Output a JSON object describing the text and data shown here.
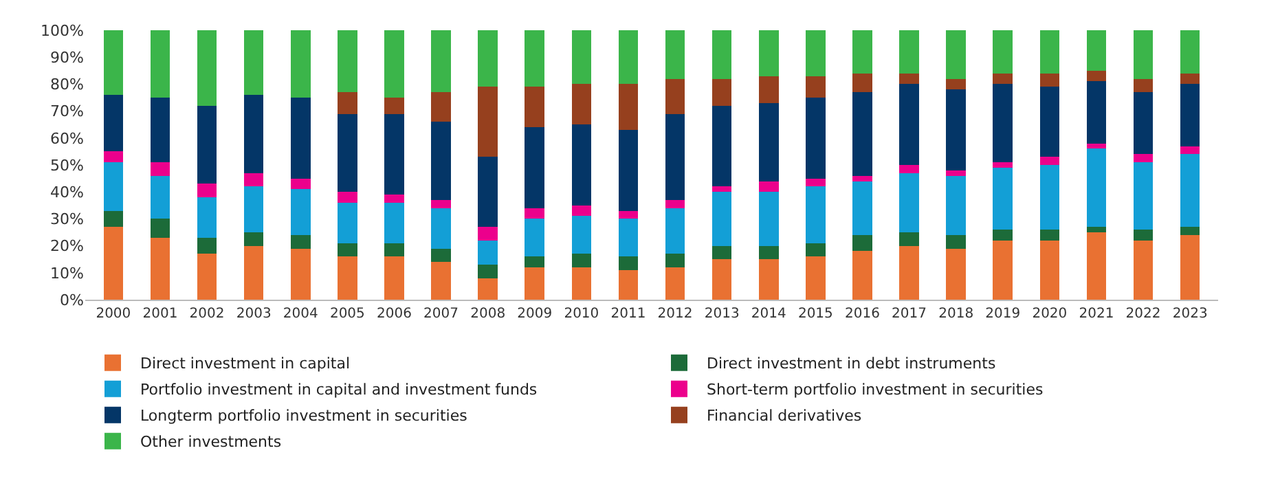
{
  "chart_data": {
    "type": "bar",
    "stacked": true,
    "categories": [
      "2000",
      "2001",
      "2002",
      "2003",
      "2004",
      "2005",
      "2006",
      "2007",
      "2008",
      "2009",
      "2010",
      "2011",
      "2012",
      "2013",
      "2014",
      "2015",
      "2016",
      "2017",
      "2018",
      "2019",
      "2020",
      "2021",
      "2022",
      "2023"
    ],
    "series": [
      {
        "name": "Direct investment in capital",
        "color": "#e97132",
        "values": [
          27,
          23,
          17,
          20,
          19,
          16,
          16,
          14,
          8,
          12,
          12,
          11,
          12,
          15,
          15,
          16,
          18,
          20,
          19,
          22,
          22,
          25,
          22,
          24
        ]
      },
      {
        "name": "Direct investment in debt instruments",
        "color": "#1c6b39",
        "values": [
          6,
          7,
          6,
          5,
          5,
          5,
          5,
          5,
          5,
          4,
          5,
          5,
          5,
          5,
          5,
          5,
          6,
          5,
          5,
          4,
          4,
          2,
          4,
          3
        ]
      },
      {
        "name": "Portfolio investment in capital and investment funds",
        "color": "#139fd6",
        "values": [
          18,
          16,
          15,
          17,
          17,
          15,
          15,
          15,
          9,
          14,
          14,
          14,
          17,
          20,
          20,
          21,
          20,
          22,
          22,
          23,
          24,
          29,
          25,
          27
        ]
      },
      {
        "name": "Short-term portfolio investment in securities",
        "color": "#ec008c",
        "values": [
          4,
          5,
          5,
          5,
          4,
          4,
          3,
          3,
          5,
          4,
          4,
          3,
          3,
          2,
          4,
          3,
          2,
          3,
          2,
          2,
          3,
          2,
          3,
          3
        ]
      },
      {
        "name": "Longterm portfolio investment in securities",
        "color": "#043667",
        "values": [
          21,
          24,
          29,
          29,
          30,
          29,
          30,
          29,
          26,
          30,
          30,
          30,
          32,
          30,
          29,
          30,
          31,
          30,
          30,
          29,
          26,
          23,
          23,
          23
        ]
      },
      {
        "name": "Financial derivatives",
        "color": "#96401e",
        "values": [
          0,
          0,
          0,
          0,
          0,
          8,
          6,
          11,
          26,
          15,
          15,
          17,
          13,
          10,
          10,
          8,
          7,
          4,
          4,
          4,
          5,
          4,
          5,
          4
        ]
      },
      {
        "name": "Other investments",
        "color": "#3bb54a",
        "values": [
          24,
          25,
          28,
          24,
          25,
          23,
          25,
          23,
          21,
          21,
          20,
          20,
          18,
          18,
          17,
          17,
          16,
          16,
          18,
          16,
          16,
          15,
          18,
          16
        ]
      }
    ],
    "ylim": [
      0,
      100
    ],
    "yticks": [
      {
        "value": 0,
        "label": "0%"
      },
      {
        "value": 10,
        "label": "10%"
      },
      {
        "value": 20,
        "label": "20%"
      },
      {
        "value": 30,
        "label": "30%"
      },
      {
        "value": 40,
        "label": "40%"
      },
      {
        "value": 50,
        "label": "50%"
      },
      {
        "value": 60,
        "label": "60%"
      },
      {
        "value": 70,
        "label": "70%"
      },
      {
        "value": 80,
        "label": "80%"
      },
      {
        "value": 90,
        "label": "90%"
      },
      {
        "value": 100,
        "label": "100%"
      }
    ],
    "grid": false,
    "legend": "bottom"
  }
}
